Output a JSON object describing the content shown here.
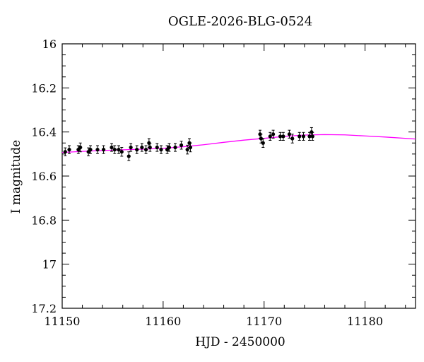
{
  "chart_data": {
    "type": "scatter",
    "title": "OGLE-2026-BLG-0524",
    "xlabel": "HJD - 2450000",
    "ylabel": "I magnitude",
    "xlim": [
      11150,
      11185
    ],
    "ylim": [
      17.2,
      16.0
    ],
    "y_inverted": true,
    "grid": false,
    "x_ticks": [
      11150,
      11160,
      11170,
      11180
    ],
    "x_tick_labels": [
      "11150",
      "11160",
      "11170",
      "11180"
    ],
    "y_ticks": [
      16.0,
      16.2,
      16.4,
      16.6,
      16.8,
      17.0,
      17.2
    ],
    "y_tick_labels": [
      "16",
      "16.2",
      "16.4",
      "16.6",
      "16.8",
      "17",
      "17.2"
    ],
    "colors": {
      "points": "#000000",
      "model": "#ff00ff",
      "axes": "#000000"
    },
    "series": [
      {
        "kind": "points_with_errorbars",
        "x": [
          11150.3,
          11150.7,
          11151.6,
          11151.8,
          11152.6,
          11152.8,
          11153.5,
          11154.1,
          11154.9,
          11155.2,
          11155.6,
          11155.9,
          11156.6,
          11156.8,
          11157.4,
          11157.9,
          11158.3,
          11158.6,
          11158.7,
          11159.4,
          11159.8,
          11160.4,
          11160.6,
          11161.2,
          11161.8,
          11162.4,
          11162.6,
          11162.7,
          11169.6,
          11169.7,
          11169.9,
          11170.6,
          11170.9,
          11171.6,
          11171.9,
          11172.5,
          11172.8,
          11173.5,
          11173.9,
          11174.5,
          11174.7,
          11174.8
        ],
        "y": [
          16.49,
          16.48,
          16.48,
          16.47,
          16.49,
          16.48,
          16.48,
          16.48,
          16.47,
          16.48,
          16.48,
          16.49,
          16.51,
          16.47,
          16.48,
          16.47,
          16.48,
          16.45,
          16.47,
          16.47,
          16.48,
          16.48,
          16.47,
          16.47,
          16.46,
          16.48,
          16.45,
          16.47,
          16.41,
          16.43,
          16.45,
          16.42,
          16.41,
          16.42,
          16.42,
          16.41,
          16.43,
          16.42,
          16.42,
          16.42,
          16.4,
          16.42
        ],
        "err": [
          0.018,
          0.018,
          0.018,
          0.02,
          0.018,
          0.018,
          0.018,
          0.018,
          0.018,
          0.018,
          0.018,
          0.02,
          0.02,
          0.018,
          0.018,
          0.018,
          0.018,
          0.02,
          0.018,
          0.018,
          0.018,
          0.018,
          0.018,
          0.018,
          0.018,
          0.02,
          0.02,
          0.02,
          0.018,
          0.02,
          0.02,
          0.018,
          0.018,
          0.018,
          0.018,
          0.018,
          0.02,
          0.018,
          0.018,
          0.018,
          0.02,
          0.018
        ]
      },
      {
        "kind": "model_curve",
        "x": [
          11150,
          11152,
          11154,
          11156,
          11158,
          11160,
          11162,
          11164,
          11166,
          11168,
          11170,
          11172,
          11174,
          11176,
          11178,
          11180,
          11182,
          11185
        ],
        "y": [
          16.493,
          16.488,
          16.484,
          16.481,
          16.478,
          16.474,
          16.467,
          16.458,
          16.447,
          16.437,
          16.429,
          16.42,
          16.414,
          16.412,
          16.413,
          16.418,
          16.423,
          16.432
        ]
      }
    ]
  }
}
